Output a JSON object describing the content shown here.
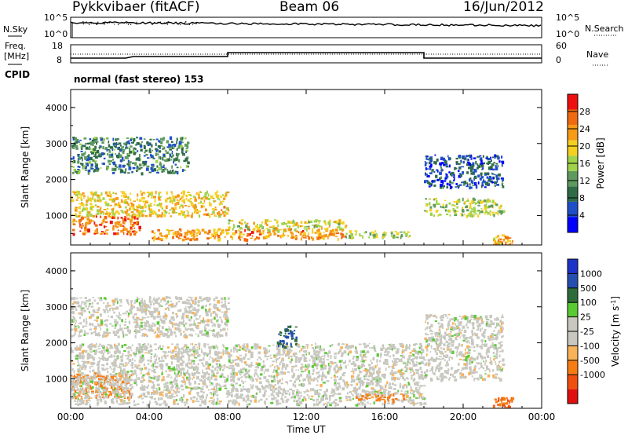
{
  "header": {
    "title": "Pykkvibaer (fitACF)",
    "beam": "Beam 06",
    "date": "16/Jun/2012"
  },
  "panels": {
    "nsky": {
      "left_label": "N.Sky",
      "right_label": "N.Search",
      "ticks_left": [
        "10^5",
        "10^0"
      ],
      "ticks_right": [
        "10^5",
        "10^0"
      ]
    },
    "freq": {
      "left_label_1": "Freq.",
      "left_label_2": "[MHz]",
      "right_label": "Nave",
      "ticks_left": [
        "18",
        "8"
      ],
      "ticks_right": [
        "60",
        "0"
      ]
    },
    "cpid": {
      "label": "CPID",
      "value": "normal (fast stereo) 153"
    }
  },
  "colors": {
    "power": [
      "#0000ff",
      "#1f4fc8",
      "#2e6b46",
      "#5e9a5e",
      "#9fd34a",
      "#f5d020",
      "#f79a15",
      "#f06a10",
      "#ee1010"
    ],
    "velocity": [
      "#e01010",
      "#f0500f",
      "#f77d13",
      "#f7b25a",
      "#c8c8c0",
      "#c8c8c0",
      "#5aca33",
      "#2e6b3a",
      "#244fb0",
      "#1c33c8"
    ]
  },
  "chart_data": [
    {
      "type": "heatmap",
      "title": "",
      "xlabel": "",
      "ylabel": "Slant Range [km]",
      "x_ticks": [
        "00:00",
        "04:00",
        "08:00",
        "12:00",
        "16:00",
        "20:00",
        "00:00"
      ],
      "y_ticks": [
        "1000",
        "2000",
        "3000",
        "4000"
      ],
      "y_range_km": [
        180,
        4500
      ],
      "x_range_h": [
        0,
        24
      ],
      "colorbar": {
        "label": "Power [dB]",
        "ticks": [
          "4",
          "8",
          "12",
          "16",
          "20",
          "24",
          "28"
        ],
        "range": [
          0,
          32
        ]
      },
      "approx_regions": [
        {
          "t": [
            0.0,
            8.0
          ],
          "r": [
            1000,
            1700
          ],
          "power_db": 20
        },
        {
          "t": [
            0.0,
            3.5
          ],
          "r": [
            500,
            1000
          ],
          "power_db": 26
        },
        {
          "t": [
            0.0,
            6.0
          ],
          "r": [
            2200,
            3200
          ],
          "power_db": 10
        },
        {
          "t": [
            4.0,
            14.0
          ],
          "r": [
            350,
            650
          ],
          "power_db": 24
        },
        {
          "t": [
            8.0,
            14.0
          ],
          "r": [
            600,
            900
          ],
          "power_db": 18
        },
        {
          "t": [
            14.0,
            17.5
          ],
          "r": [
            400,
            600
          ],
          "power_db": 16
        },
        {
          "t": [
            18.0,
            22.0
          ],
          "r": [
            1000,
            1500
          ],
          "power_db": 16
        },
        {
          "t": [
            18.0,
            22.0
          ],
          "r": [
            1800,
            2700
          ],
          "power_db": 6
        },
        {
          "t": [
            21.5,
            22.5
          ],
          "r": [
            200,
            500
          ],
          "power_db": 22
        }
      ]
    },
    {
      "type": "heatmap",
      "title": "",
      "xlabel": "Time UT",
      "ylabel": "Slant Range [km]",
      "x_ticks": [
        "00:00",
        "04:00",
        "08:00",
        "12:00",
        "16:00",
        "20:00",
        "00:00"
      ],
      "y_ticks": [
        "1000",
        "2000",
        "3000",
        "4000"
      ],
      "y_range_km": [
        180,
        4500
      ],
      "x_range_h": [
        0,
        24
      ],
      "colorbar": {
        "label": "Velocity [m s",
        "label_sup": "-1",
        "label_end": "]",
        "ticks": [
          "1000",
          "500",
          "100",
          "25",
          "-25",
          "-100",
          "-500",
          "-1000"
        ]
      },
      "approx_regions": [
        {
          "t": [
            0.0,
            3.0
          ],
          "r": [
            500,
            1200
          ],
          "velocity_ms": -150
        },
        {
          "t": [
            0.0,
            18.0
          ],
          "r": [
            300,
            2000
          ],
          "velocity_ms": 0
        },
        {
          "t": [
            0.0,
            8.0
          ],
          "r": [
            2200,
            3300
          ],
          "velocity_ms": 0
        },
        {
          "t": [
            10.5,
            11.5
          ],
          "r": [
            1900,
            2500
          ],
          "velocity_ms": 300
        },
        {
          "t": [
            14.5,
            17.0
          ],
          "r": [
            400,
            600
          ],
          "velocity_ms": -120
        },
        {
          "t": [
            18.0,
            22.0
          ],
          "r": [
            1000,
            2800
          ],
          "velocity_ms": 0
        },
        {
          "t": [
            21.5,
            22.5
          ],
          "r": [
            200,
            500
          ],
          "velocity_ms": -300
        }
      ]
    }
  ]
}
